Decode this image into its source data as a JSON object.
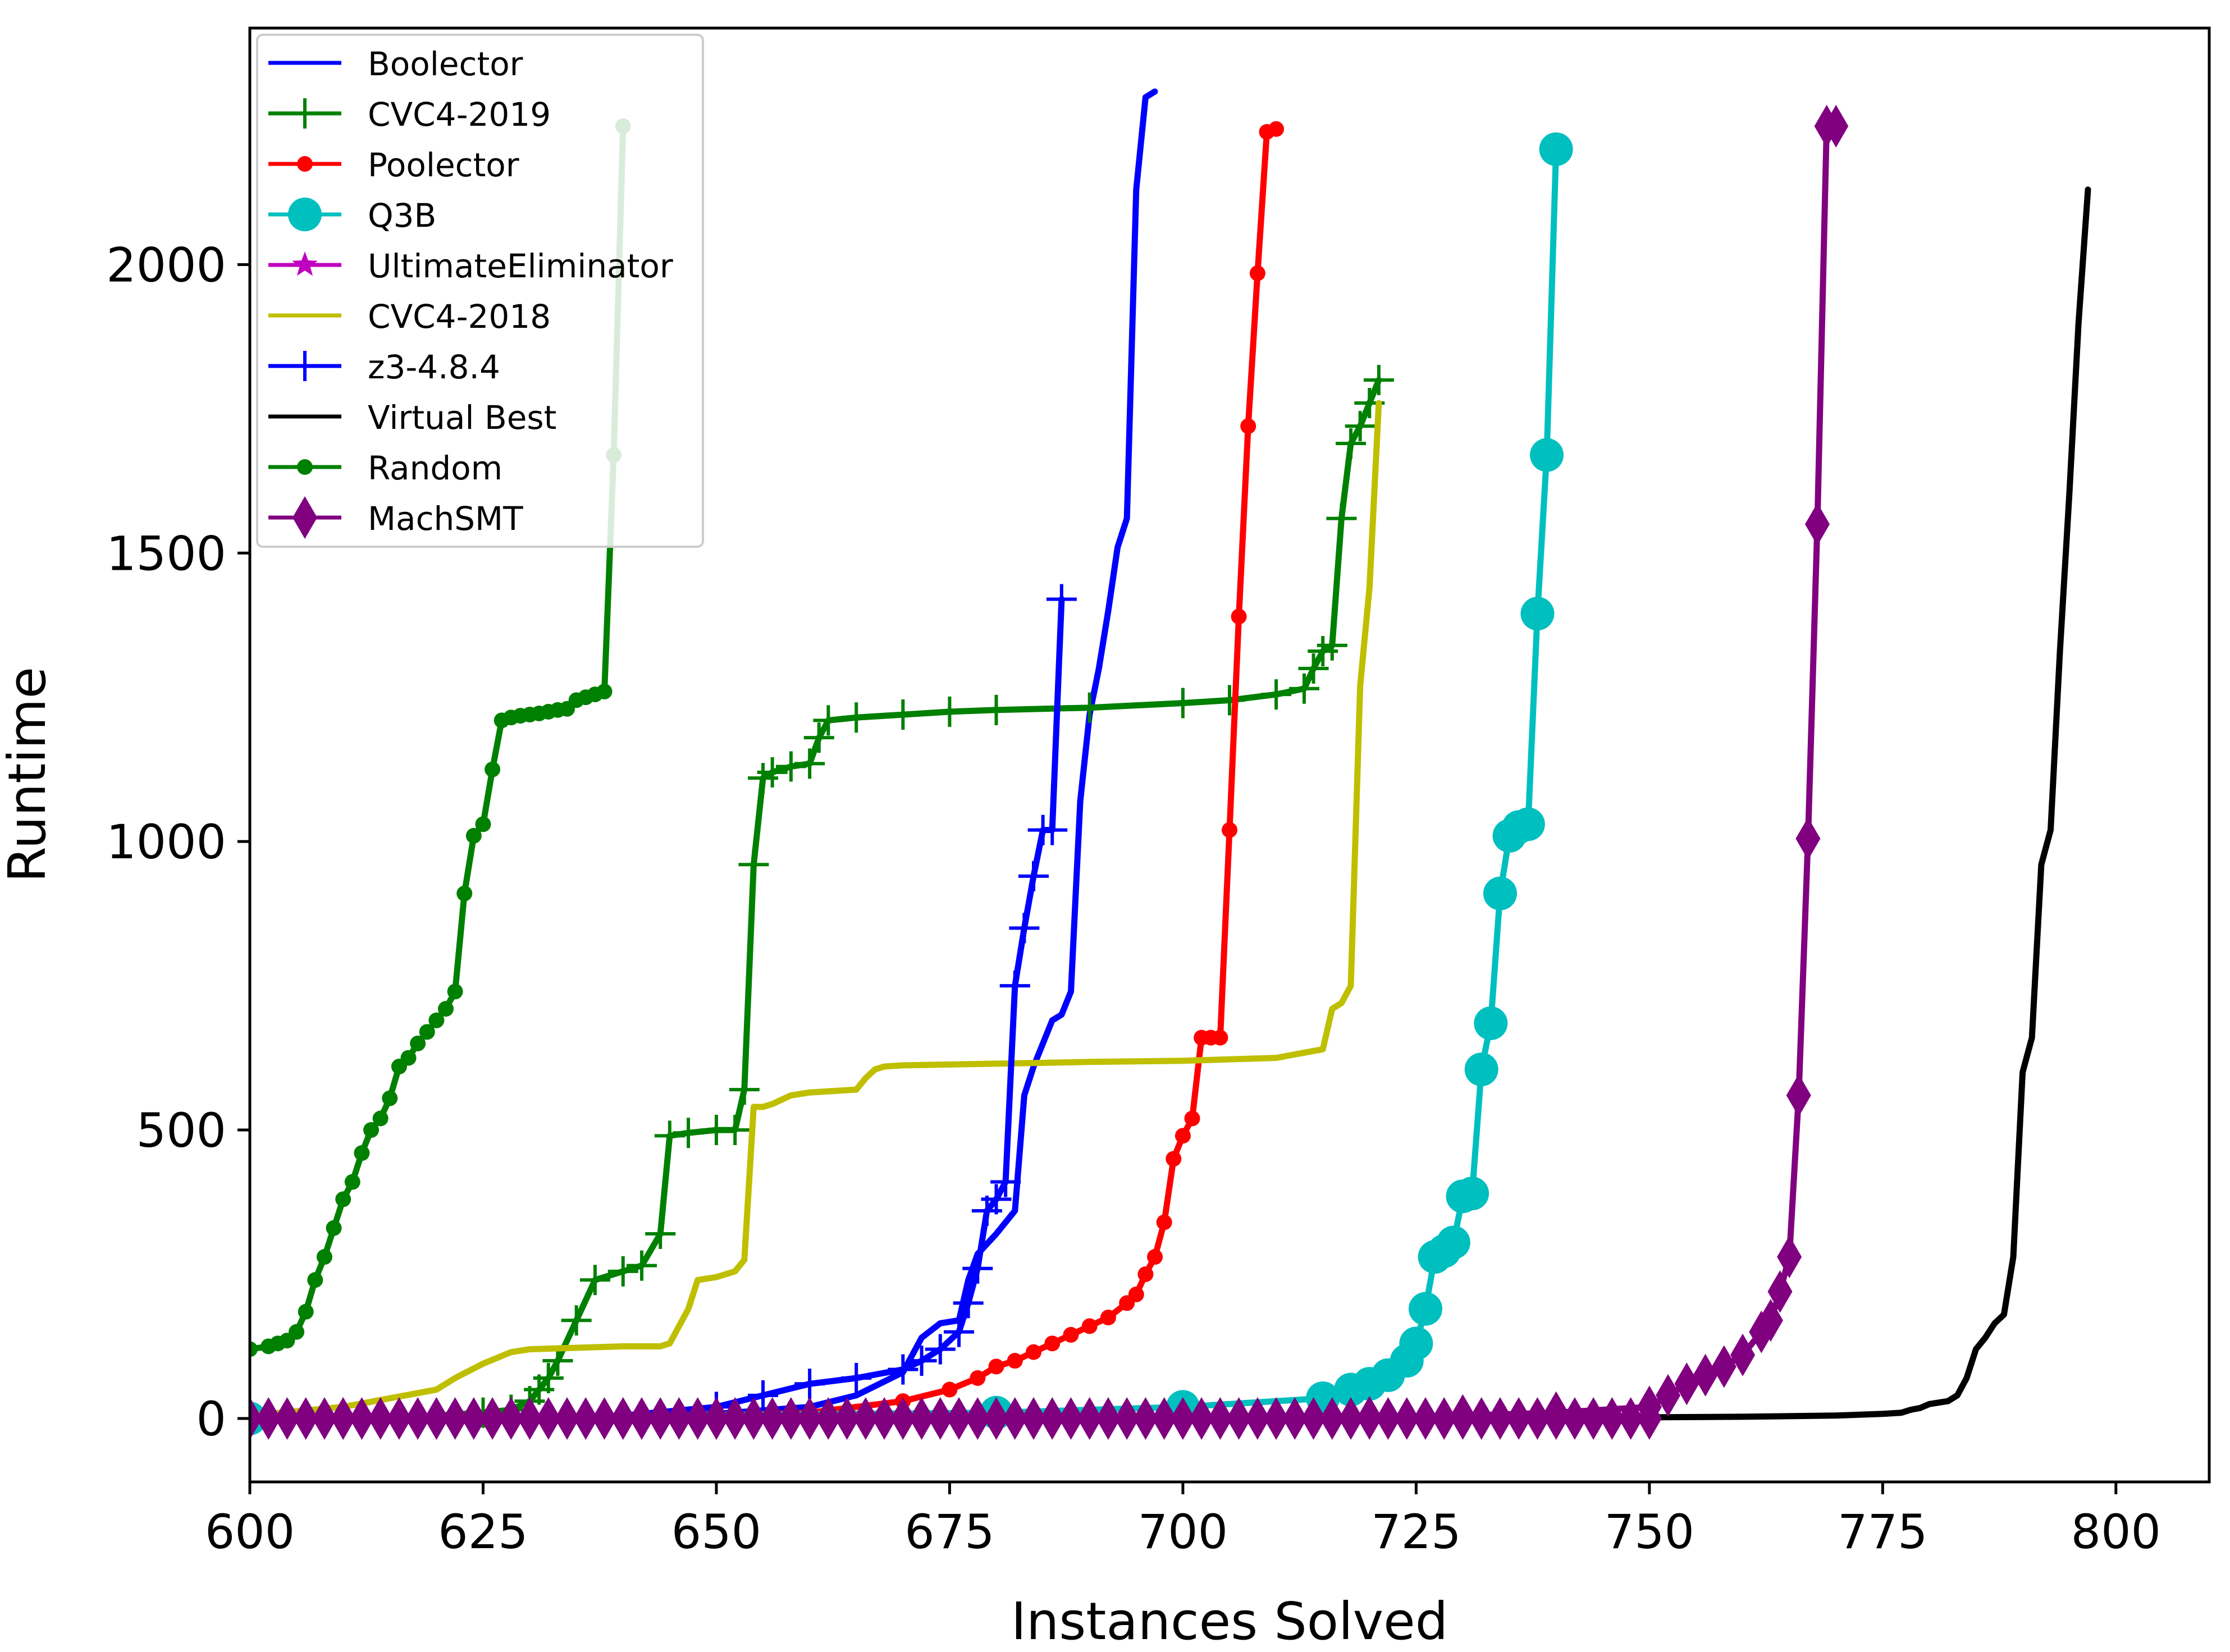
{
  "chart_data": {
    "type": "line",
    "title": "",
    "xlabel": "Instances Solved",
    "ylabel": "Runtime",
    "xlim": [
      600,
      810
    ],
    "ylim": [
      -110,
      2410
    ],
    "xticks": [
      600,
      625,
      650,
      675,
      700,
      725,
      750,
      775,
      800
    ],
    "yticks": [
      0,
      500,
      1000,
      1500,
      2000
    ],
    "legend_position": "top-left",
    "grid": false,
    "series": [
      {
        "name": "Boolector",
        "color": "#0000ff",
        "marker": "none",
        "x": [
          600,
          620,
          640,
          650,
          660,
          665,
          670,
          672,
          674,
          676,
          677,
          678,
          680,
          682,
          683,
          684,
          686,
          687,
          688,
          689,
          690,
          691,
          692,
          693,
          694,
          695,
          696,
          697
        ],
        "y": [
          0,
          1,
          3,
          8,
          20,
          40,
          80,
          140,
          165,
          170,
          240,
          285,
          320,
          360,
          560,
          610,
          690,
          700,
          740,
          1070,
          1220,
          1300,
          1400,
          1510,
          1560,
          2130,
          2290,
          2300
        ]
      },
      {
        "name": "CVC4-2019",
        "color": "#008000",
        "marker": "plus",
        "x": [
          620,
          625,
          628,
          630,
          631,
          632,
          633,
          635,
          637,
          640,
          642,
          644,
          645,
          647,
          650,
          652,
          653,
          654,
          655,
          656,
          658,
          660,
          661,
          662,
          665,
          670,
          675,
          680,
          690,
          700,
          705,
          710,
          713,
          714,
          715,
          716,
          717,
          718,
          719,
          720,
          721
        ],
        "y": [
          5,
          10,
          15,
          30,
          50,
          70,
          100,
          170,
          240,
          255,
          265,
          320,
          490,
          495,
          500,
          500,
          570,
          960,
          1110,
          1120,
          1130,
          1135,
          1180,
          1210,
          1215,
          1220,
          1225,
          1228,
          1232,
          1240,
          1245,
          1255,
          1265,
          1300,
          1330,
          1340,
          1560,
          1690,
          1720,
          1760,
          1800
        ]
      },
      {
        "name": "Poolector",
        "color": "#ff0000",
        "marker": "dot",
        "x": [
          640,
          650,
          660,
          670,
          675,
          678,
          680,
          682,
          684,
          686,
          688,
          690,
          692,
          694,
          695,
          696,
          697,
          698,
          699,
          700,
          701,
          702,
          703,
          704,
          705,
          706,
          707,
          708,
          709,
          710
        ],
        "y": [
          2,
          5,
          10,
          30,
          50,
          70,
          90,
          100,
          115,
          130,
          145,
          160,
          175,
          200,
          215,
          250,
          280,
          340,
          450,
          490,
          520,
          660,
          660,
          660,
          1020,
          1390,
          1720,
          1985,
          2230,
          2235
        ]
      },
      {
        "name": "Q3B",
        "color": "#00bfbf",
        "marker": "circle",
        "x": [
          600,
          680,
          700,
          715,
          718,
          720,
          722,
          724,
          725,
          726,
          727,
          728,
          729,
          730,
          731,
          732,
          733,
          734,
          735,
          736,
          737,
          738,
          739,
          740
        ],
        "y": [
          0,
          10,
          20,
          35,
          50,
          60,
          75,
          100,
          130,
          190,
          280,
          290,
          305,
          385,
          390,
          605,
          685,
          910,
          1010,
          1025,
          1030,
          1395,
          1670,
          2200
        ]
      },
      {
        "name": "UltimateEliminator",
        "color": "#bf00bf",
        "marker": "star",
        "x": [],
        "y": []
      },
      {
        "name": "CVC4-2018",
        "color": "#bfbf00",
        "marker": "none",
        "x": [
          600,
          610,
          615,
          620,
          622,
          625,
          628,
          630,
          640,
          644,
          645,
          647,
          648,
          650,
          652,
          653,
          654,
          655,
          656,
          658,
          660,
          665,
          666,
          667,
          668,
          670,
          680,
          690,
          700,
          710,
          715,
          716,
          717,
          718,
          719,
          720,
          721
        ],
        "y": [
          5,
          20,
          35,
          50,
          70,
          95,
          115,
          120,
          125,
          125,
          130,
          190,
          240,
          245,
          255,
          275,
          540,
          540,
          545,
          560,
          565,
          570,
          590,
          605,
          610,
          612,
          615,
          618,
          620,
          625,
          640,
          710,
          720,
          750,
          1270,
          1440,
          1760
        ]
      },
      {
        "name": "z3-4.8.4",
        "color": "#0000ff",
        "marker": "plus",
        "x": [
          640,
          650,
          655,
          660,
          665,
          670,
          672,
          674,
          676,
          677,
          678,
          679,
          680,
          681,
          682,
          683,
          684,
          685,
          686,
          687
        ],
        "y": [
          5,
          20,
          40,
          60,
          70,
          85,
          100,
          120,
          150,
          200,
          260,
          360,
          380,
          410,
          750,
          850,
          940,
          1020,
          1020,
          1420
        ]
      },
      {
        "name": "Virtual Best",
        "color": "#000000",
        "marker": "none",
        "x": [
          600,
          700,
          750,
          760,
          770,
          775,
          777,
          778,
          779,
          780,
          782,
          783,
          784,
          785,
          786,
          787,
          788,
          789,
          790,
          791,
          792,
          793,
          794,
          795,
          796,
          797
        ],
        "y": [
          0,
          1,
          2,
          3,
          5,
          8,
          10,
          15,
          18,
          25,
          30,
          40,
          70,
          120,
          140,
          165,
          180,
          280,
          600,
          660,
          960,
          1020,
          1330,
          1600,
          1900,
          2130
        ]
      },
      {
        "name": "Random",
        "color": "#008000",
        "marker": "dot",
        "x": [
          600,
          602,
          603,
          604,
          605,
          606,
          607,
          608,
          609,
          610,
          611,
          612,
          613,
          614,
          615,
          616,
          617,
          618,
          619,
          620,
          621,
          622,
          623,
          624,
          625,
          626,
          627,
          628,
          629,
          630,
          631,
          632,
          633,
          634,
          635,
          636,
          637,
          638,
          639,
          640
        ],
        "y": [
          120,
          125,
          130,
          135,
          150,
          185,
          240,
          280,
          330,
          380,
          410,
          460,
          500,
          520,
          555,
          610,
          625,
          650,
          670,
          690,
          710,
          740,
          910,
          1010,
          1030,
          1125,
          1210,
          1215,
          1218,
          1220,
          1222,
          1225,
          1228,
          1230,
          1245,
          1250,
          1255,
          1260,
          1670,
          2240
        ]
      },
      {
        "name": "MachSMT",
        "color": "#800080",
        "marker": "diamond",
        "x": [
          600,
          610,
          620,
          630,
          640,
          650,
          660,
          670,
          680,
          690,
          700,
          710,
          720,
          730,
          740,
          750,
          752,
          754,
          756,
          758,
          760,
          762,
          763,
          764,
          765,
          766,
          767,
          768,
          769,
          770
        ],
        "y": [
          0,
          0,
          0,
          0,
          0,
          0,
          0,
          0,
          0,
          0,
          0,
          0,
          2,
          5,
          10,
          20,
          40,
          60,
          75,
          90,
          110,
          150,
          170,
          220,
          280,
          560,
          1005,
          1550,
          2240,
          2240
        ]
      }
    ]
  }
}
